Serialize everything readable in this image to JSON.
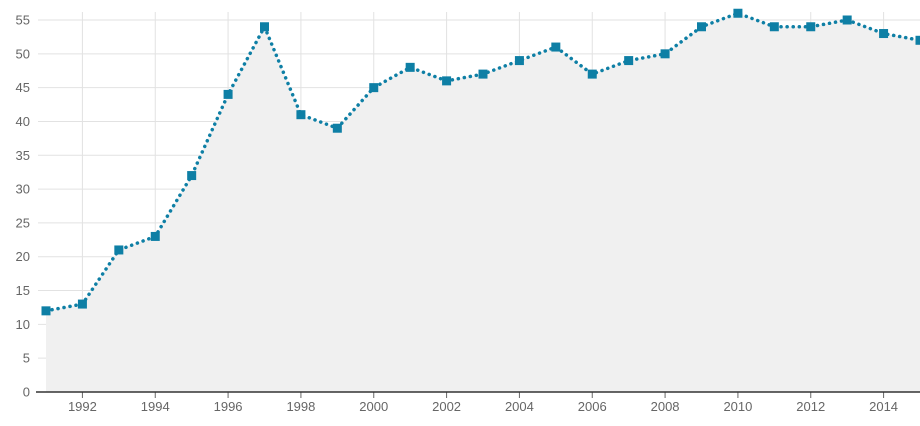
{
  "chart_data": {
    "type": "area",
    "x": [
      1991,
      1992,
      1993,
      1994,
      1995,
      1996,
      1997,
      1998,
      1999,
      2000,
      2001,
      2002,
      2003,
      2004,
      2005,
      2006,
      2007,
      2008,
      2009,
      2010,
      2011,
      2012,
      2013,
      2014,
      2015
    ],
    "series": [
      {
        "values": [
          12,
          13,
          21,
          23,
          32,
          44,
          54,
          41,
          39,
          45,
          48,
          46,
          47,
          49,
          51,
          47,
          49,
          50,
          54,
          56,
          54,
          54,
          55,
          53,
          52
        ]
      }
    ],
    "x_ticks": [
      "1992",
      "1994",
      "1996",
      "1998",
      "2000",
      "2002",
      "2004",
      "2006",
      "2008",
      "2010",
      "2012",
      "2014"
    ],
    "y_ticks": [
      "0",
      "5",
      "10",
      "15",
      "20",
      "25",
      "30",
      "35",
      "40",
      "45",
      "50",
      "55"
    ],
    "xlim": [
      1991,
      2015
    ],
    "ylim": [
      0,
      55
    ],
    "title": "",
    "xlabel": "",
    "ylabel": "",
    "grid": true,
    "line_style": "dotted",
    "marker": "square",
    "colors": {
      "line": "#0e7fa5",
      "marker": "#0e7fa5",
      "area": "#f0f0f0",
      "grid": "#e2e2e2",
      "axis": "#333333"
    }
  }
}
